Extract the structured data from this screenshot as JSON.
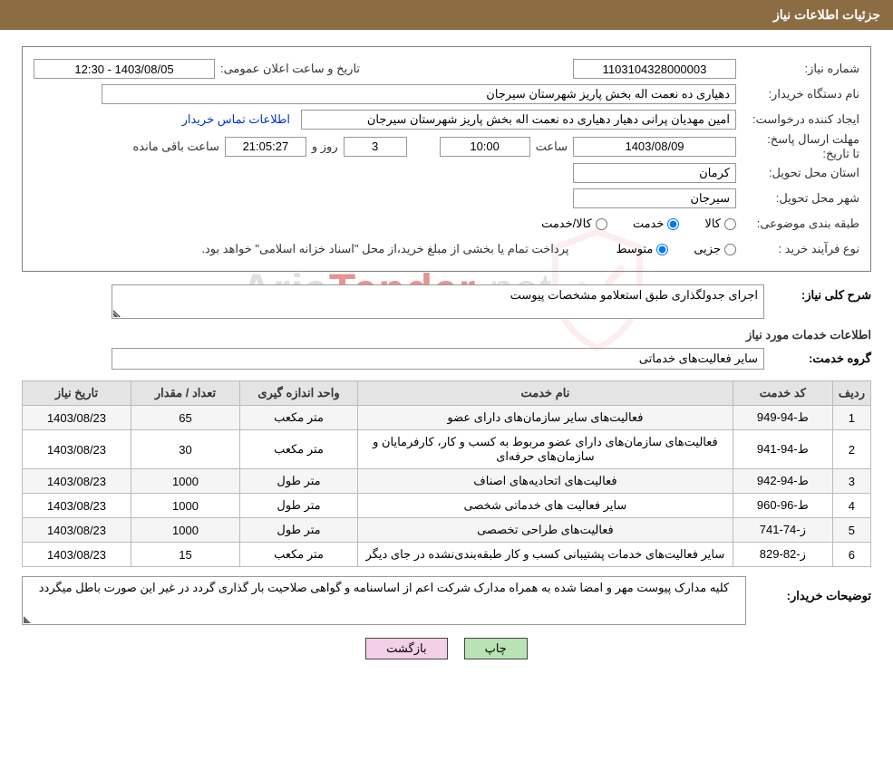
{
  "header": {
    "title": "جزئیات اطلاعات نیاز"
  },
  "info": {
    "need_no_label": "شماره نیاز:",
    "need_no": "1103104328000003",
    "pub_datetime_label": "تاریخ و ساعت اعلان عمومی:",
    "pub_datetime": "1403/08/05 - 12:30",
    "buyer_org_label": "نام دستگاه خریدار:",
    "buyer_org": "دهیاری ده نعمت اله بخش پاریز شهرستان سیرجان",
    "requester_label": "ایجاد کننده درخواست:",
    "requester": "امین مهدیان پرانی دهیار دهیاری ده نعمت اله بخش پاریز شهرستان سیرجان",
    "buyer_contact_link": "اطلاعات تماس خریدار",
    "deadline_label_1": "مهلت ارسال پاسخ:",
    "deadline_label_2": "تا تاریخ:",
    "deadline_date": "1403/08/09",
    "deadline_time_label": "ساعت",
    "deadline_time": "10:00",
    "remaining_days": "3",
    "remaining_label_days": "روز و",
    "remaining_time": "21:05:27",
    "remaining_label_suffix": "ساعت باقی مانده",
    "province_label": "استان محل تحویل:",
    "province": "کرمان",
    "city_label": "شهر محل تحویل:",
    "city": "سیرجان",
    "topic_label": "طبقه بندی موضوعی:",
    "topic_options": {
      "goods": "کالا",
      "service": "خدمت",
      "both": "کالا/خدمت"
    },
    "topic_selected": "service",
    "process_label": "نوع فرآیند خرید :",
    "process_options": {
      "small": "جزیی",
      "medium": "متوسط"
    },
    "process_selected": "medium",
    "payment_note": "پرداخت تمام یا بخشی از مبلغ خرید،از محل \"اسناد خزانه اسلامی\" خواهد بود."
  },
  "general": {
    "label": "شرح کلی نیاز:",
    "text": "اجرای جدولگذاری طبق استعلامو مشخصات پیوست"
  },
  "services_title": "اطلاعات خدمات مورد نیاز",
  "group": {
    "label": "گروه خدمت:",
    "value": "سایر فعالیت‌های خدماتی"
  },
  "table": {
    "headers": {
      "row": "ردیف",
      "code": "کد خدمت",
      "name": "نام خدمت",
      "unit": "واحد اندازه گیری",
      "qty": "تعداد / مقدار",
      "need_date": "تاریخ نیاز"
    },
    "rows": [
      {
        "n": "1",
        "code": "ط-94-949",
        "name": "فعالیت‌های سایر سازمان‌های دارای عضو",
        "unit": "متر مکعب",
        "qty": "65",
        "date": "1403/08/23"
      },
      {
        "n": "2",
        "code": "ط-94-941",
        "name": "فعالیت‌های سازمان‌های دارای عضو مربوط به کسب و کار، کارفرمایان و سازمان‌های حرفه‌ای",
        "unit": "متر مکعب",
        "qty": "30",
        "date": "1403/08/23"
      },
      {
        "n": "3",
        "code": "ط-94-942",
        "name": "فعالیت‌های اتحادیه‌های اصناف",
        "unit": "متر طول",
        "qty": "1000",
        "date": "1403/08/23"
      },
      {
        "n": "4",
        "code": "ط-96-960",
        "name": "سایر فعالیت های خدماتی شخصی",
        "unit": "متر طول",
        "qty": "1000",
        "date": "1403/08/23"
      },
      {
        "n": "5",
        "code": "ز-74-741",
        "name": "فعالیت‌های طراحی تخصصی",
        "unit": "متر طول",
        "qty": "1000",
        "date": "1403/08/23"
      },
      {
        "n": "6",
        "code": "ز-82-829",
        "name": "سایر فعالیت‌های خدمات پشتیبانی کسب و کار طبقه‌بندی‌نشده در جای دیگر",
        "unit": "متر مکعب",
        "qty": "15",
        "date": "1403/08/23"
      }
    ]
  },
  "buyer_desc": {
    "label": "توضیحات خریدار:",
    "text": "کلیه مدارک پیوست مهر و امضا شده به همراه مدارک شرکت اعم از اساسنامه و گواهی صلاحیت بار گذاری گردد در غیر این صورت باطل میگردد"
  },
  "buttons": {
    "print": "چاپ",
    "back": "بازگشت"
  },
  "watermark": {
    "t1": "Aria",
    "t2": "Tender",
    "t3": ".net"
  },
  "colors": {
    "header_bg": "#8c6c42",
    "border": "#999999",
    "th_bg": "#e4e4e4",
    "row_odd": "#f5f5f5",
    "link": "#0033cc",
    "btn_print": "#b7e3b5",
    "btn_back": "#f3cfe8"
  }
}
